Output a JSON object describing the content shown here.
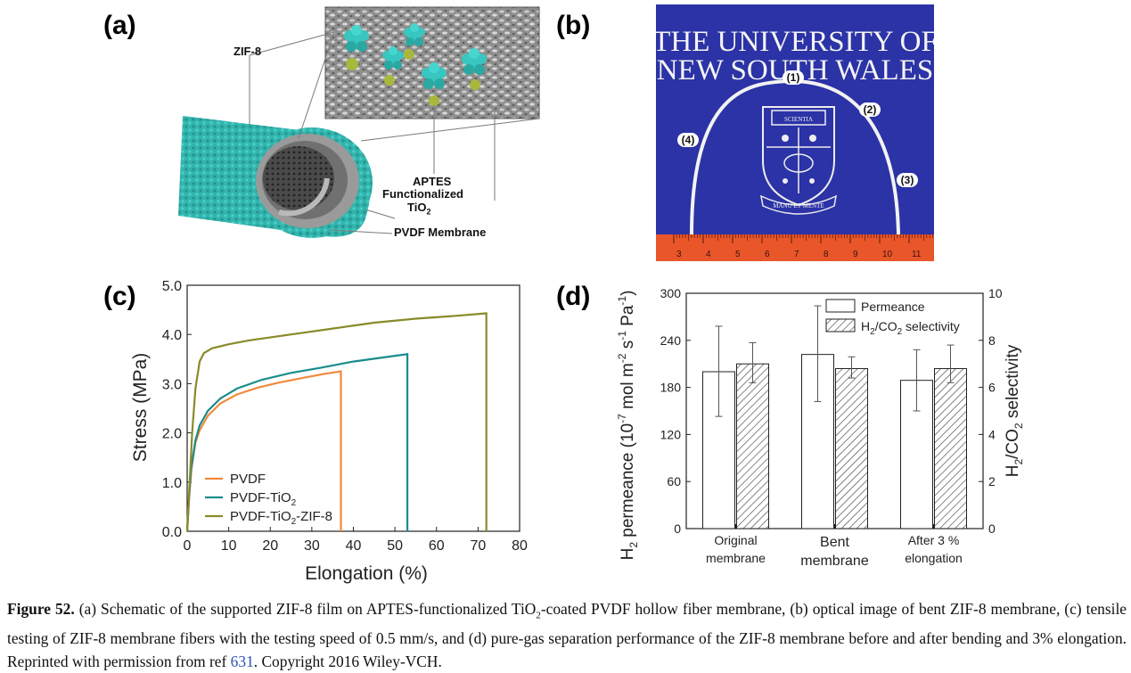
{
  "panels": {
    "a": {
      "letter": "(a)",
      "labels": {
        "zif8": "ZIF-8",
        "aptes": "APTES",
        "functionalized": "Functionalized",
        "tio2_base": "TiO",
        "tio2_sub": "2",
        "pvdf_membrane": "PVDF Membrane"
      },
      "colors": {
        "fiber": "#33b4ad",
        "zif_crystal": "#38c7c0",
        "tio2_particle": "#a8b83c",
        "sem_background": "#8a8a8a"
      }
    },
    "b": {
      "letter": "(b)",
      "banner_line1": "THE UNIVERSITY OF",
      "banner_line2": "NEW SOUTH WALES",
      "crest_motto": "MANU ET MENTE",
      "crest_book": "SCIENTIA",
      "markers": [
        "(1)",
        "(2)",
        "(3)",
        "(4)"
      ],
      "ruler_ticks": [
        "3",
        "4",
        "5",
        "6",
        "7",
        "8",
        "9",
        "10",
        "11"
      ],
      "colors": {
        "background": "#2b33a6",
        "ruler": "#e8562a",
        "fiber": "#f2f2f2"
      }
    }
  },
  "chart_data": [
    {
      "panel_letter": "(c)",
      "type": "line",
      "xlabel": "Elongation (%)",
      "ylabel": "Stress (MPa)",
      "xlim": [
        0,
        80
      ],
      "ylim": [
        0,
        5.0
      ],
      "x_ticks": [
        "0",
        "10",
        "20",
        "30",
        "40",
        "50",
        "60",
        "70",
        "80"
      ],
      "y_ticks": [
        "0.0",
        "1.0",
        "2.0",
        "3.0",
        "4.0",
        "5.0"
      ],
      "legend_position": "bottom-left",
      "series": [
        {
          "name": "PVDF",
          "color": "#f08a3c",
          "points": [
            [
              0,
              0
            ],
            [
              0.5,
              0.7
            ],
            [
              1,
              1.25
            ],
            [
              2,
              1.8
            ],
            [
              3,
              2.05
            ],
            [
              5,
              2.35
            ],
            [
              8,
              2.6
            ],
            [
              12,
              2.78
            ],
            [
              17,
              2.92
            ],
            [
              22,
              3.02
            ],
            [
              28,
              3.12
            ],
            [
              33,
              3.2
            ],
            [
              37,
              3.25
            ],
            [
              37,
              0
            ]
          ]
        },
        {
          "name_base": "PVDF-TiO",
          "name_sub": "2",
          "color": "#1a8c8c",
          "points": [
            [
              0,
              0
            ],
            [
              0.5,
              0.75
            ],
            [
              1,
              1.3
            ],
            [
              2,
              1.85
            ],
            [
              3,
              2.15
            ],
            [
              5,
              2.45
            ],
            [
              8,
              2.7
            ],
            [
              12,
              2.9
            ],
            [
              18,
              3.08
            ],
            [
              25,
              3.22
            ],
            [
              32,
              3.32
            ],
            [
              40,
              3.45
            ],
            [
              47,
              3.53
            ],
            [
              53,
              3.6
            ],
            [
              53,
              0
            ]
          ]
        },
        {
          "name_base": "PVDF-TiO",
          "name_sub": "2",
          "name_tail": "-ZIF-8",
          "color": "#8a8a2a",
          "points": [
            [
              0,
              0
            ],
            [
              0.6,
              1.0
            ],
            [
              1.2,
              2.0
            ],
            [
              2,
              2.9
            ],
            [
              3,
              3.45
            ],
            [
              4,
              3.62
            ],
            [
              6,
              3.72
            ],
            [
              10,
              3.8
            ],
            [
              15,
              3.88
            ],
            [
              25,
              4.0
            ],
            [
              35,
              4.12
            ],
            [
              45,
              4.24
            ],
            [
              55,
              4.32
            ],
            [
              65,
              4.38
            ],
            [
              72,
              4.43
            ],
            [
              72,
              0
            ]
          ]
        }
      ]
    },
    {
      "panel_letter": "(d)",
      "type": "bar",
      "categories": [
        [
          "Original",
          "membrane"
        ],
        [
          "Bent",
          "membrane"
        ],
        [
          "After 3 %",
          "elongation"
        ]
      ],
      "ylabel_left": {
        "H": "H",
        "sub2": "2",
        "mid": " permeance (10",
        "exp": "-7",
        "unit1": " mol m",
        "exp2": "-2",
        "unit2": " s",
        "exp3": "-1",
        "unit3": " Pa",
        "exp4": "-1",
        "close": ")"
      },
      "ylabel_right": {
        "H": "H",
        "sub2": "2",
        "slash": "/CO",
        "sub3": "2",
        "tail": " selectivity"
      },
      "ylim_left": [
        0,
        300
      ],
      "ylim_right": [
        0,
        10
      ],
      "left_ticks": [
        "0",
        "60",
        "120",
        "180",
        "240",
        "300"
      ],
      "right_ticks": [
        "0",
        "2",
        "4",
        "6",
        "8",
        "10"
      ],
      "legend_position": "top-right",
      "series": [
        {
          "name": "Permeance",
          "axis": "left",
          "values": [
            200,
            222,
            189
          ],
          "errors": [
            [
              143,
              258
            ],
            [
              162,
              284
            ],
            [
              150,
              228
            ]
          ]
        },
        {
          "name_base": "H",
          "name_sub": "2",
          "name_mid": "/CO",
          "name_sub2": "2",
          "name_tail": " selectivity",
          "axis": "right",
          "values": [
            7.0,
            6.8,
            6.8
          ],
          "errors": [
            [
              6.2,
              7.9
            ],
            [
              6.4,
              7.3
            ],
            [
              6.2,
              7.8
            ]
          ]
        }
      ]
    }
  ],
  "caption": {
    "figure_label": "Figure 52.",
    "t1": " (a) Schematic of the supported ZIF-8 film on APTES-functionalized TiO",
    "sub1": "2",
    "t2": "-coated PVDF hollow fiber membrane, (b) optical image of bent ZIF-8 membrane, (c) tensile testing of ZIF-8 membrane fibers with the testing speed of 0.5 mm/s, and (d) pure-gas separation performance of the ZIF-8 membrane before and after bending and 3% elongation. Reprinted with permission from ref ",
    "ref": "631",
    "t3": ". Copyright 2016 Wiley-VCH."
  }
}
